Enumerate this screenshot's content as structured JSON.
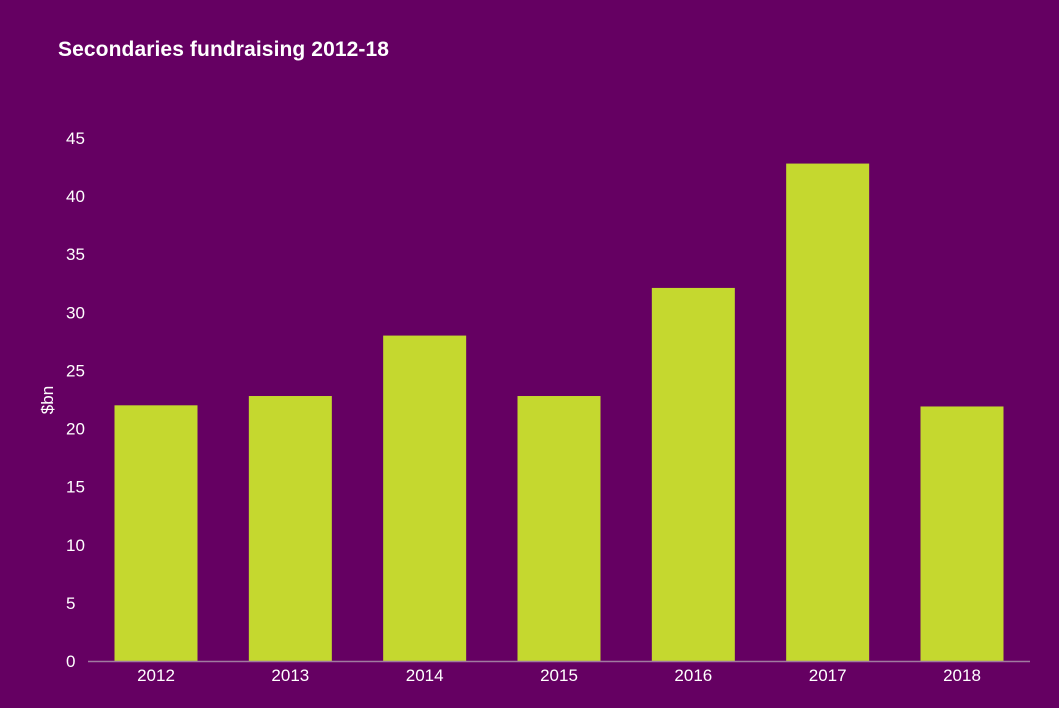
{
  "chart_data": {
    "type": "bar",
    "title": "Secondaries fundraising 2012-18",
    "xlabel": "",
    "ylabel": "$bn",
    "categories": [
      "2012",
      "2013",
      "2014",
      "2015",
      "2016",
      "2017",
      "2018"
    ],
    "values": [
      22,
      22.8,
      28,
      22.8,
      32.1,
      42.8,
      21.9
    ],
    "ylim": [
      0,
      45
    ],
    "yticks": [
      0,
      5,
      10,
      15,
      20,
      25,
      30,
      35,
      40,
      45
    ],
    "grid": false,
    "legend": "none",
    "colors": {
      "background": "#650062",
      "bar": "#c5d82f",
      "text": "#ffffff",
      "axis": "#a07aa0"
    }
  }
}
